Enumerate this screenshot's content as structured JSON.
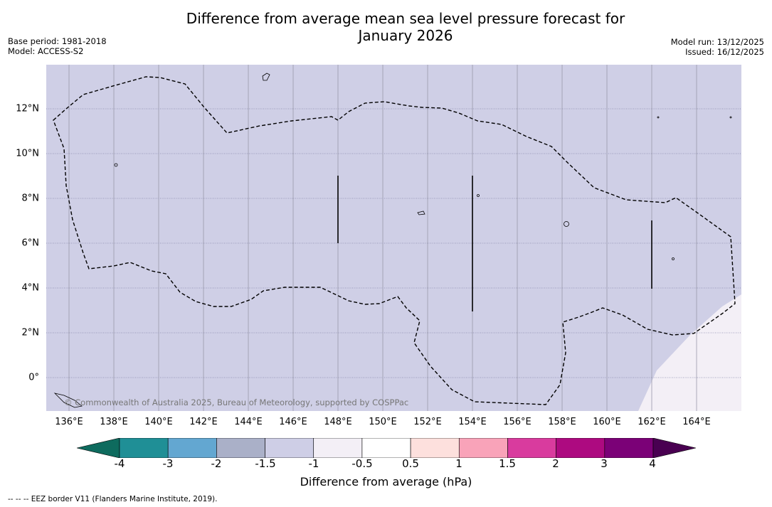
{
  "title": "Difference from average mean sea level pressure forecast for January 2026",
  "base_period": "Base period: 1981-2018",
  "model": "Model: ACCESS-S2",
  "model_run": "Model run: 13/12/2025",
  "issued": "Issued: 16/12/2025",
  "copyright": "© Commonwealth of Australia 2025, Bureau of Meteorology, supported by COSPPac",
  "footer": "--  --  -- EEZ border V11 (Flanders Marine Institute, 2019).",
  "colorbar_title": "Difference from average (hPa)",
  "x_ticks": [
    "136°E",
    "138°E",
    "140°E",
    "142°E",
    "144°E",
    "146°E",
    "148°E",
    "150°E",
    "152°E",
    "154°E",
    "156°E",
    "158°E",
    "160°E",
    "162°E",
    "164°E"
  ],
  "y_ticks": [
    "12°N",
    "10°N",
    "8°N",
    "6°N",
    "4°N",
    "2°N",
    "0°"
  ],
  "colorbar": {
    "labels": [
      "-4",
      "-3",
      "-2",
      "-1.5",
      "-1",
      "-0.5",
      "0.5",
      "1",
      "1.5",
      "2",
      "3",
      "4"
    ],
    "colors": [
      "#0e6b5e",
      "#1f8f96",
      "#63a7d1",
      "#aab0c8",
      "#ceceE6",
      "#f3eff6",
      "#ffffff",
      "#fde0dd",
      "#f9a3b9",
      "#d93b9e",
      "#ad0a80",
      "#7b0177",
      "#490051"
    ]
  },
  "colors": {
    "ocean_fill": "#cfcfe6",
    "light_fill": "#f3eff6",
    "grid": "#9999aa"
  }
}
